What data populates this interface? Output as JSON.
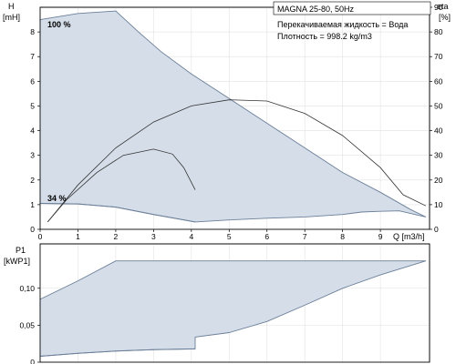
{
  "title": "MAGNA 25-80, 50Hz",
  "fluid_text": "Перекачиваемая жидкость = Вода",
  "density_text": "Плотность = 998.2 kg/m3",
  "colors": {
    "envelope_fill": "#d4dde8",
    "envelope_stroke": "#6b7f99",
    "curve": "#333333",
    "axis": "#000000"
  },
  "chart_data": [
    {
      "type": "area",
      "id": "head",
      "ylabel_line1": "H",
      "ylabel_line2": "[mH]",
      "y2label_line1": "eta",
      "y2label_line2": "[%]",
      "xlabel": "Q [m3/h]",
      "xlim": [
        0,
        10.3
      ],
      "ylim": [
        0,
        9
      ],
      "y2lim": [
        0,
        90
      ],
      "x_ticks": [
        "0",
        "1",
        "2",
        "3",
        "4",
        "5",
        "6",
        "7",
        "8",
        "9"
      ],
      "y_ticks": [
        "0",
        "1",
        "2",
        "3",
        "4",
        "5",
        "6",
        "7",
        "8"
      ],
      "y2_ticks": [
        "0",
        "10",
        "20",
        "30",
        "40",
        "50",
        "60",
        "70",
        "80",
        "90"
      ],
      "envelope": {
        "upper": [
          [
            0,
            8.5
          ],
          [
            1.0,
            8.75
          ],
          [
            2.0,
            8.85
          ],
          [
            2.6,
            8.0
          ],
          [
            3.2,
            7.2
          ],
          [
            4.0,
            6.3
          ],
          [
            5.0,
            5.3
          ],
          [
            6.0,
            4.3
          ],
          [
            7.0,
            3.3
          ],
          [
            8.0,
            2.3
          ],
          [
            9.0,
            1.5
          ],
          [
            9.8,
            0.8
          ],
          [
            10.2,
            0.5
          ]
        ],
        "lower": [
          [
            10.2,
            0.5
          ],
          [
            9.5,
            0.75
          ],
          [
            9.0,
            0.73
          ],
          [
            8.5,
            0.7
          ],
          [
            8.0,
            0.6
          ],
          [
            7.0,
            0.5
          ],
          [
            6.0,
            0.45
          ],
          [
            5.0,
            0.38
          ],
          [
            4.1,
            0.3
          ],
          [
            3.0,
            0.6
          ],
          [
            2.0,
            0.9
          ],
          [
            1.0,
            1.03
          ],
          [
            0,
            1.05
          ]
        ]
      },
      "max_speed_label": "100 %",
      "min_speed_label": "34 %",
      "min_speed_curve": [
        [
          0,
          1.05
        ],
        [
          1.0,
          1.03
        ],
        [
          2.0,
          0.9
        ],
        [
          3.0,
          0.6
        ],
        [
          4.1,
          0.3
        ]
      ],
      "efficiency_curves": [
        {
          "points": [
            [
              0.2,
              0.3
            ],
            [
              0.7,
              1.2
            ],
            [
              1.5,
              2.3
            ],
            [
              2.2,
              3.0
            ],
            [
              3.0,
              3.25
            ],
            [
              3.5,
              3.05
            ],
            [
              3.8,
              2.5
            ],
            [
              4.1,
              1.6
            ]
          ]
        },
        {
          "points": [
            [
              0.2,
              0.3
            ],
            [
              1.0,
              1.8
            ],
            [
              2.0,
              3.3
            ],
            [
              3.0,
              4.35
            ],
            [
              4.0,
              5.0
            ],
            [
              5.0,
              5.25
            ],
            [
              6.0,
              5.2
            ],
            [
              7.0,
              4.7
            ],
            [
              8.0,
              3.8
            ],
            [
              9.0,
              2.5
            ],
            [
              9.6,
              1.4
            ],
            [
              10.2,
              0.95
            ]
          ]
        }
      ]
    },
    {
      "type": "area",
      "id": "power",
      "ylabel_line1": "P1",
      "ylabel_line2": "[kWP1]",
      "xlim": [
        0,
        10.3
      ],
      "ylim": [
        0,
        0.16
      ],
      "y_ticks": [
        "0",
        "0,05",
        "0,10"
      ],
      "y_tick_values": [
        0,
        0.05,
        0.1
      ],
      "envelope": {
        "upper": [
          [
            0,
            0.085
          ],
          [
            1.0,
            0.11
          ],
          [
            2.0,
            0.137
          ],
          [
            10.2,
            0.137
          ]
        ],
        "lower": [
          [
            10.2,
            0.137
          ],
          [
            9.0,
            0.118
          ],
          [
            8.0,
            0.1
          ],
          [
            7.0,
            0.077
          ],
          [
            6.0,
            0.055
          ],
          [
            5.0,
            0.04
          ],
          [
            4.1,
            0.034
          ],
          [
            4.1,
            0.018
          ],
          [
            3.0,
            0.017
          ],
          [
            2.0,
            0.015
          ],
          [
            1.0,
            0.012
          ],
          [
            0,
            0.008
          ]
        ]
      },
      "min_speed_curve": [
        [
          0,
          0.008
        ],
        [
          1.0,
          0.012
        ],
        [
          2.0,
          0.015
        ],
        [
          3.0,
          0.017
        ],
        [
          4.1,
          0.018
        ]
      ]
    }
  ]
}
